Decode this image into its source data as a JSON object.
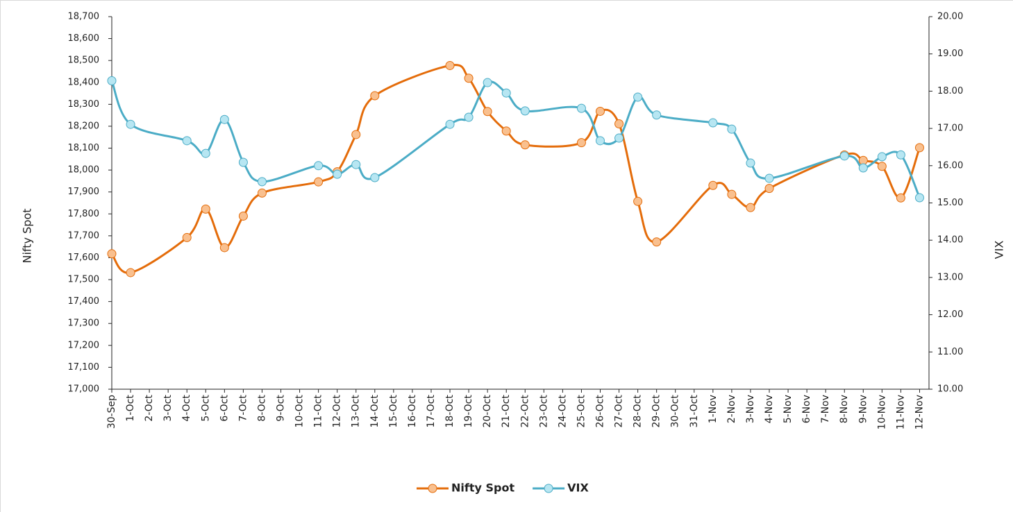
{
  "chart_data": {
    "type": "line",
    "y_axis_label": "Nifty Spot",
    "y2_axis_label": "VIX",
    "categories": [
      "30-Sep",
      "1-Oct",
      "2-Oct",
      "3-Oct",
      "4-Oct",
      "5-Oct",
      "6-Oct",
      "7-Oct",
      "8-Oct",
      "9-Oct",
      "10-Oct",
      "11-Oct",
      "12-Oct",
      "13-Oct",
      "14-Oct",
      "15-Oct",
      "16-Oct",
      "17-Oct",
      "18-Oct",
      "19-Oct",
      "20-Oct",
      "21-Oct",
      "22-Oct",
      "23-Oct",
      "24-Oct",
      "25-Oct",
      "26-Oct",
      "27-Oct",
      "28-Oct",
      "29-Oct",
      "30-Oct",
      "31-Oct",
      "1-Nov",
      "2-Nov",
      "3-Nov",
      "4-Nov",
      "5-Nov",
      "6-Nov",
      "7-Nov",
      "8-Nov",
      "9-Nov",
      "10-Nov",
      "11-Nov",
      "12-Nov"
    ],
    "ylim": [
      17000,
      18700
    ],
    "yticks": [
      {
        "value": 17000,
        "label": "17,000"
      },
      {
        "value": 17100,
        "label": "17,100"
      },
      {
        "value": 17200,
        "label": "17,200"
      },
      {
        "value": 17300,
        "label": "17,300"
      },
      {
        "value": 17400,
        "label": "17,400"
      },
      {
        "value": 17500,
        "label": "17,500"
      },
      {
        "value": 17600,
        "label": "17,600"
      },
      {
        "value": 17700,
        "label": "17,700"
      },
      {
        "value": 17800,
        "label": "17,800"
      },
      {
        "value": 17900,
        "label": "17,900"
      },
      {
        "value": 18000,
        "label": "18,000"
      },
      {
        "value": 18100,
        "label": "18,100"
      },
      {
        "value": 18200,
        "label": "18,200"
      },
      {
        "value": 18300,
        "label": "18,300"
      },
      {
        "value": 18400,
        "label": "18,400"
      },
      {
        "value": 18500,
        "label": "18,500"
      },
      {
        "value": 18600,
        "label": "18,600"
      },
      {
        "value": 18700,
        "label": "18,700"
      }
    ],
    "y2lim": [
      10,
      20
    ],
    "y2ticks": [
      {
        "value": 10,
        "label": "10.00"
      },
      {
        "value": 11,
        "label": "11.00"
      },
      {
        "value": 12,
        "label": "12.00"
      },
      {
        "value": 13,
        "label": "13.00"
      },
      {
        "value": 14,
        "label": "14.00"
      },
      {
        "value": 15,
        "label": "15.00"
      },
      {
        "value": 16,
        "label": "16.00"
      },
      {
        "value": 17,
        "label": "17.00"
      },
      {
        "value": 18,
        "label": "18.00"
      },
      {
        "value": 19,
        "label": "19.00"
      },
      {
        "value": 20,
        "label": "20.00"
      }
    ],
    "legend": "bottom",
    "series": [
      {
        "name": "Nifty Spot",
        "color": "#e46c0a",
        "marker_fill": "#f9c08f",
        "x": [
          "30-Sep",
          "1-Oct",
          "4-Oct",
          "5-Oct",
          "6-Oct",
          "7-Oct",
          "8-Oct",
          "11-Oct",
          "12-Oct",
          "13-Oct",
          "14-Oct",
          "18-Oct",
          "19-Oct",
          "20-Oct",
          "21-Oct",
          "22-Oct",
          "25-Oct",
          "26-Oct",
          "27-Oct",
          "28-Oct",
          "29-Oct",
          "1-Nov",
          "2-Nov",
          "3-Nov",
          "4-Nov",
          "8-Nov",
          "9-Nov",
          "10-Nov",
          "11-Nov",
          "12-Nov"
        ],
        "values": [
          17618,
          17532,
          17692,
          17822,
          17646,
          17790,
          17895,
          17946,
          17992,
          18162,
          18339,
          18477,
          18419,
          18267,
          18178,
          18115,
          18125,
          18268,
          18211,
          17857,
          17672,
          17930,
          17889,
          17829,
          17916,
          18069,
          18044,
          18017,
          17873,
          18102
        ]
      },
      {
        "name": "VIX",
        "color": "#4bacc6",
        "marker_fill": "#b7e6f2",
        "axis": "y2",
        "x": [
          "30-Sep",
          "1-Oct",
          "4-Oct",
          "5-Oct",
          "6-Oct",
          "7-Oct",
          "8-Oct",
          "11-Oct",
          "12-Oct",
          "13-Oct",
          "14-Oct",
          "18-Oct",
          "19-Oct",
          "20-Oct",
          "21-Oct",
          "22-Oct",
          "25-Oct",
          "26-Oct",
          "27-Oct",
          "28-Oct",
          "29-Oct",
          "1-Nov",
          "2-Nov",
          "3-Nov",
          "4-Nov",
          "8-Nov",
          "9-Nov",
          "10-Nov",
          "11-Nov",
          "12-Nov"
        ],
        "values": [
          18.28,
          17.11,
          16.67,
          16.33,
          17.24,
          16.09,
          15.57,
          16.0,
          15.77,
          16.03,
          15.68,
          17.11,
          17.3,
          18.23,
          17.95,
          17.47,
          17.54,
          16.67,
          16.74,
          17.84,
          17.36,
          17.15,
          16.98,
          16.07,
          15.66,
          16.26,
          15.94,
          16.24,
          16.29,
          15.14
        ]
      }
    ]
  }
}
